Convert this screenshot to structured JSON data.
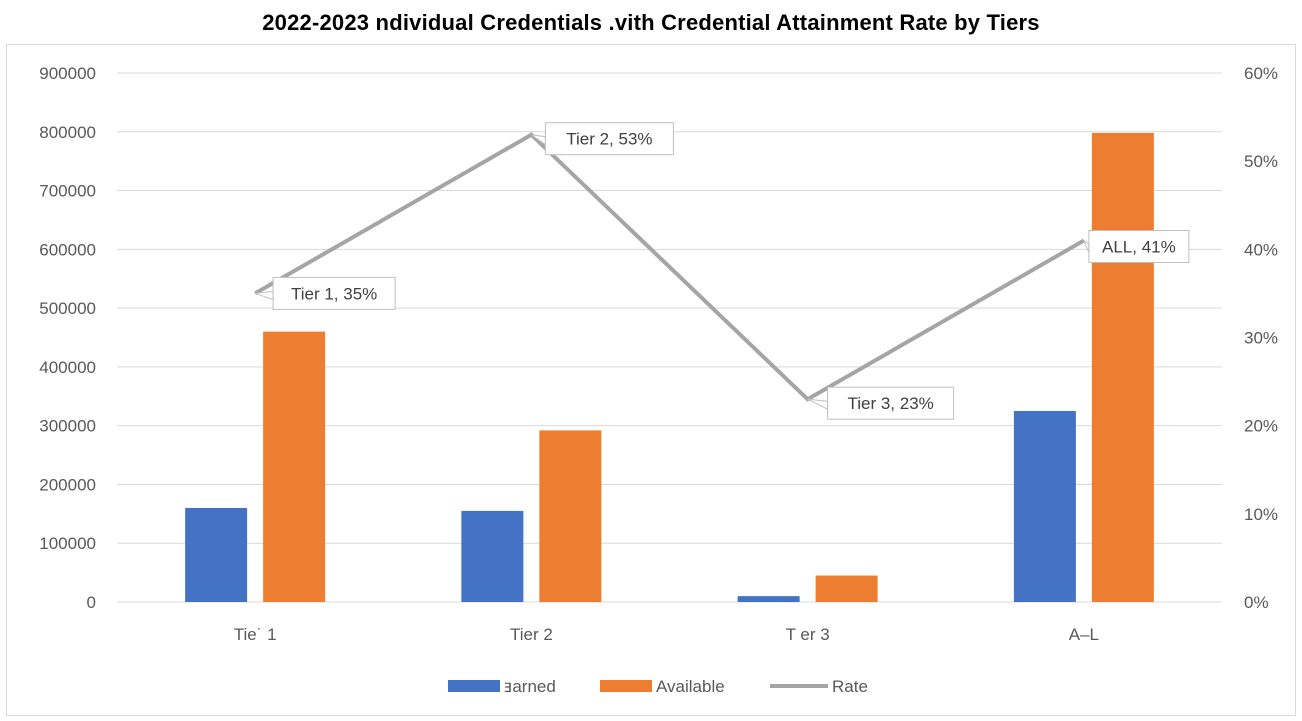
{
  "chart_data": {
    "type": "bar",
    "title": "2022-2023  ndividual Credentials .vith Credential Attainment Rate by Tiers",
    "categories": [
      "Tie˙ 1",
      "Tier 2",
      "T er 3",
      "A–L"
    ],
    "series": [
      {
        "name": "ⱻarned",
        "type": "bar",
        "axis": "left",
        "values": [
          160000,
          155000,
          10000,
          325000
        ]
      },
      {
        "name": "Available",
        "type": "bar",
        "axis": "left",
        "values": [
          460000,
          292000,
          45000,
          798000
        ]
      },
      {
        "name": "Rate",
        "type": "line",
        "axis": "right",
        "values": [
          35,
          53,
          23,
          41
        ]
      }
    ],
    "left_axis": {
      "min": 0,
      "max": 900000,
      "step": 100000,
      "ticks": [
        "0",
        "100000",
        "200000",
        "300000",
        "400000",
        "500000",
        "600000",
        "700000",
        "800000",
        "900000"
      ]
    },
    "right_axis": {
      "min": 0,
      "max": 60,
      "step": 10,
      "ticks": [
        "0%",
        "10%",
        "20%",
        "30%",
        "40%",
        "50%",
        "60%"
      ]
    },
    "data_labels": [
      "Tier 1, 35%",
      "Tier 2, 53%",
      "Tier 3, 23%",
      "ALL, 41%"
    ],
    "grid": true,
    "legend_position": "bottom",
    "colors": {
      "Earned": "#4472c4",
      "Available": "#ed7d31",
      "Rate": "#a5a5a5",
      "grid": "#d9d9d9"
    }
  }
}
